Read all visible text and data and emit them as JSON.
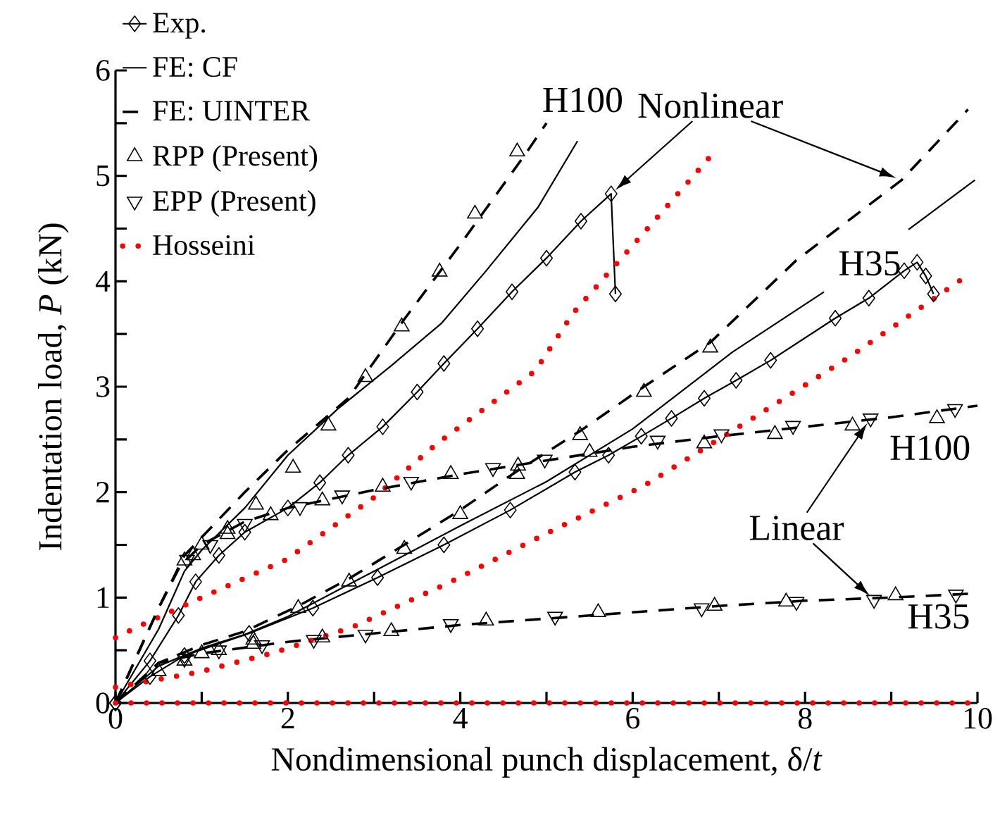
{
  "chart_data": {
    "type": "line",
    "xlabel": "Nondimensional punch displacement, δ/*t*",
    "ylabel": "Indentation load, *P* (kN)",
    "xlim": [
      0,
      10
    ],
    "ylim": [
      0,
      6
    ],
    "xticks": [
      0,
      {
        "value": 1,
        "label": null
      },
      2,
      {
        "value": 3,
        "label": null
      },
      4,
      {
        "value": 5,
        "label": null
      },
      6,
      {
        "value": 7,
        "label": null
      },
      8,
      {
        "value": 9,
        "label": null
      },
      10
    ],
    "yticks": [
      0,
      {
        "value": 0.5,
        "label": null
      },
      1,
      {
        "value": 1.5,
        "label": null
      },
      2,
      {
        "value": 2.5,
        "label": null
      },
      3,
      {
        "value": 3.5,
        "label": null
      },
      4,
      {
        "value": 4.5,
        "label": null
      },
      5,
      {
        "value": 5.5,
        "label": null
      },
      6
    ],
    "grid": false,
    "legend": "top left",
    "series": [
      {
        "name": "Exp.",
        "color": "#000000",
        "marker": "diamond",
        "line_style": "solid",
        "x": [
          0,
          0.4,
          0.73,
          0.93,
          1.2,
          1.5,
          2,
          2.37,
          2.7,
          3.1,
          3.5,
          3.81,
          4.2,
          4.6,
          5,
          5.4,
          5.75,
          5.8
        ],
        "values": [
          0,
          0.4,
          0.83,
          1.15,
          1.4,
          1.62,
          1.85,
          2.09,
          2.35,
          2.62,
          2.95,
          3.22,
          3.55,
          3.9,
          4.22,
          4.57,
          4.83,
          3.88
        ]
      },
      {
        "name": "FE: CF",
        "color": "#000000",
        "marker": "none",
        "line_style": "solid",
        "x": [
          0,
          0.5,
          0.8,
          1,
          1.5,
          2,
          2.58,
          3.2,
          3.78,
          4.3,
          4.9,
          5.36
        ],
        "values": [
          0,
          0.7,
          1.25,
          1.45,
          1.85,
          2.35,
          2.79,
          3.2,
          3.6,
          4.1,
          4.7,
          5.33
        ]
      },
      {
        "name": "FE: UINTER",
        "color": "#000000",
        "marker": "none",
        "line_style": "dashed",
        "x": [
          0,
          0.5,
          0.8,
          1.5,
          2,
          2.7,
          3.35,
          4,
          4.75,
          5
        ],
        "values": [
          0,
          0.9,
          1.4,
          2,
          2.4,
          2.89,
          3.64,
          4.35,
          5.2,
          5.5
        ]
      },
      {
        "name": "RPP (Present)",
        "type": "scatter",
        "color": "#000000",
        "marker": "triangle",
        "x": [
          0.8,
          1,
          1.3,
          1.63,
          2.06,
          2.47,
          2.9,
          3.32,
          3.76,
          4.17,
          4.66
        ],
        "values": [
          1.35,
          1.5,
          1.65,
          1.88,
          2.23,
          2.63,
          3.09,
          3.57,
          4.09,
          4.64,
          5.23
        ]
      },
      {
        "name": "EPP (Present)",
        "type": "scatter",
        "color": "#000000",
        "marker": "triangle-down",
        "x": [
          0.83,
          1.1,
          1.5,
          2.14,
          2.63,
          3.43,
          4.38,
          4.98,
          6.29,
          7.03,
          7.86,
          8.76,
          9.74
        ],
        "values": [
          1.36,
          1.5,
          1.7,
          1.86,
          1.97,
          2.1,
          2.23,
          2.31,
          2.49,
          2.55,
          2.63,
          2.7,
          2.79
        ]
      },
      {
        "name": "Hosseini",
        "color": "#ff0000",
        "marker": "none",
        "line_style": "dotted",
        "x": [
          0,
          0.33,
          1,
          1.98,
          3,
          3.73,
          4.87,
          5.31,
          6.14,
          6.96
        ],
        "values": [
          0.62,
          0.75,
          1,
          1.36,
          1.95,
          2.46,
          3.15,
          3.7,
          4.47,
          5.24
        ]
      },
      {
        "color": "#000000",
        "marker": "diamond",
        "line_style": "solid",
        "x": [
          0,
          0.4,
          0.8,
          1.55,
          2.29,
          3.04,
          3.81,
          4.58,
          5.33,
          5.72,
          6.1,
          6.45,
          6.83,
          7.2,
          7.6,
          8.35,
          8.74,
          9.15,
          9.3,
          9.4,
          9.49
        ],
        "values": [
          0,
          0.25,
          0.45,
          0.66,
          0.9,
          1.19,
          1.5,
          1.83,
          2.19,
          2.35,
          2.53,
          2.7,
          2.89,
          3.06,
          3.25,
          3.65,
          3.84,
          4.1,
          4.18,
          4.05,
          3.88
        ]
      },
      {
        "color": "#000000",
        "marker": "none",
        "line_style": "solid",
        "x": [
          0,
          0.5,
          1,
          1.5,
          2,
          3,
          4,
          5,
          6,
          7.16,
          8.22,
          8.6,
          9.2,
          9.97
        ],
        "values": [
          0,
          0.35,
          0.52,
          0.65,
          0.82,
          1.25,
          1.68,
          2.1,
          2.6,
          3.33,
          3.9,
          null,
          4.49,
          4.96
        ]
      },
      {
        "color": "#000000",
        "marker": "none",
        "line_style": "dashed",
        "x": [
          0,
          0.5,
          1,
          1.5,
          2.12,
          2.71,
          3.35,
          4,
          4.66,
          5.39,
          6.13,
          6.9,
          7.9,
          9.12,
          9.89
        ],
        "values": [
          0,
          0.38,
          0.55,
          0.68,
          0.92,
          1.18,
          1.5,
          1.83,
          2.2,
          2.58,
          3,
          3.42,
          4.2,
          4.96,
          5.63
        ]
      },
      {
        "type": "scatter",
        "color": "#000000",
        "marker": "triangle",
        "x": [
          0.5,
          0.8,
          1.2,
          1.6,
          2.12,
          2.71,
          3.35,
          4,
          4.66,
          5.39,
          6.13,
          6.9
        ],
        "values": [
          0.3,
          0.4,
          0.5,
          0.6,
          0.9,
          1.15,
          1.46,
          1.79,
          2.17,
          2.54,
          2.95,
          3.37
        ]
      },
      {
        "color": "#000000",
        "marker": "none",
        "line_style": "dashed",
        "x": [
          0,
          0.5,
          0.75,
          1,
          1.5,
          2,
          3,
          4,
          5,
          6,
          7,
          8,
          9,
          10
        ],
        "values": [
          0,
          0.9,
          1.3,
          1.5,
          1.72,
          1.85,
          2.02,
          2.17,
          2.3,
          2.43,
          2.53,
          2.62,
          2.71,
          2.82
        ]
      },
      {
        "type": "scatter",
        "color": "#000000",
        "marker": "triangle",
        "x": [
          0.9,
          1.3,
          1.8,
          2.4,
          3.1,
          3.89,
          4.67,
          5.5,
          6.83,
          7.65,
          8.55,
          9.53
        ],
        "values": [
          1.4,
          1.6,
          1.78,
          1.92,
          2.05,
          2.17,
          2.25,
          2.38,
          2.46,
          2.55,
          2.63,
          2.7
        ]
      },
      {
        "color": "#000000",
        "marker": "none",
        "line_style": "dashed",
        "x": [
          0,
          0.5,
          1,
          2,
          3,
          4,
          5,
          6,
          7,
          8,
          9,
          10
        ],
        "values": [
          0,
          0.38,
          0.47,
          0.58,
          0.66,
          0.74,
          0.8,
          0.86,
          0.92,
          0.97,
          1,
          1.04
        ]
      },
      {
        "type": "scatter",
        "color": "#000000",
        "marker": "triangle",
        "x": [
          1,
          1.6,
          2.4,
          3.2,
          4.3,
          5.6,
          6.95,
          7.78,
          9.05
        ],
        "values": [
          0.47,
          0.56,
          0.62,
          0.68,
          0.78,
          0.86,
          0.92,
          0.96,
          1.02
        ]
      },
      {
        "type": "scatter",
        "color": "#000000",
        "marker": "triangle-down",
        "x": [
          0.8,
          1.2,
          1.7,
          2.3,
          2.9,
          3.89,
          5.1,
          6.8,
          7.9,
          8.8,
          9.75
        ],
        "values": [
          0.42,
          0.5,
          0.55,
          0.6,
          0.65,
          0.75,
          0.82,
          0.9,
          0.96,
          0.98,
          1.03
        ]
      },
      {
        "color": "#ff0000",
        "marker": "none",
        "line_style": "dotted",
        "x": [
          0,
          0.95,
          1.85,
          2.75,
          3.89,
          5.03,
          6.13,
          7.45,
          8.51,
          9.82
        ],
        "values": [
          0.15,
          0.29,
          0.48,
          0.72,
          1.15,
          1.62,
          2.06,
          2.73,
          3.28,
          4.02
        ]
      },
      {
        "color": "#ff0000",
        "marker": "none",
        "line_style": "dotted",
        "x": [
          0,
          10
        ],
        "values": [
          0,
          0
        ]
      }
    ],
    "annotations": [
      "H100",
      {
        "text": "Nonlinear",
        "x": 5.75,
        "y": 4.83
      },
      "H35",
      "H100",
      {
        "text": "Linear",
        "x": 8.76,
        "y": 2.7
      },
      "H35"
    ]
  }
}
